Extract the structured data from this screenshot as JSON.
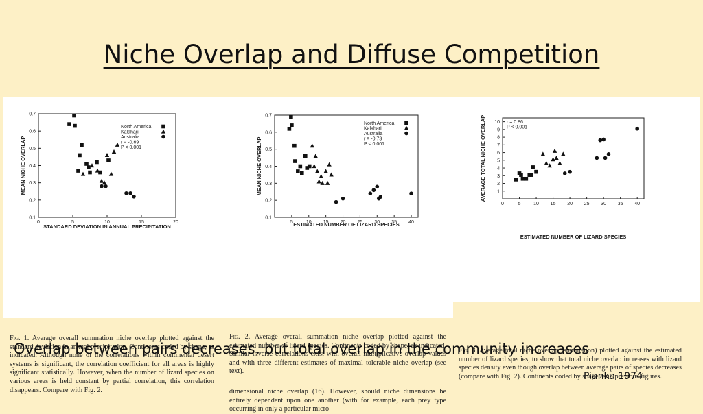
{
  "title": "Niche Overlap and Diffuse Competition",
  "subtitle": "Overlap between pairs decreases, but total overlap in the community increases",
  "credit": "Pianka 1974",
  "colors": {
    "background": "#fdf0c6",
    "panel": "#ffffff",
    "ink": "#111111"
  },
  "captions": {
    "fig1_label": "Fig. 1.",
    "fig1_text": "Average overall summation niche overlap plotted against the standard deviation in annual precipitation. Continents coded by shape, as indicated. Although none of the correlations within continental desert systems is significant, the correlation coefficient for all areas is highly significant statistically. However, when the number of lizard species on various areas is held constant by partial correlation, this correlation disappears. Compare with Fig. 2.",
    "fig2_label": "Fig. 2.",
    "fig2_text": "Average overall summation niche overlap plotted against the estimated number of lizard species. Continents coded by shape, as indicated. Similar inverse correlations exist with overall multiplicative overlap values and with three different estimates of maximal tolerable niche overlap (see text).",
    "fig2_continued": "dimensional niche overlap (16). However, should niche dimensions be entirely dependent upon one another (with for example, each prey type occurring in only a particular micro-",
    "fig3_label": "Fig. 3.",
    "fig3_text": "Average total niche overlap (summation) plotted against the estimated number of lizard species, to show that total niche overlap increases with lizard species density even though overlap between average pairs of species decreases (compare with Fig. 2). Continents coded by shape as in previous figures."
  },
  "chart_data": [
    {
      "type": "scatter",
      "xlabel": "STANDARD DEVIATION IN ANNUAL PRECIPITATION",
      "ylabel": "MEAN NICHE OVERLAP",
      "xlim": [
        0,
        20
      ],
      "ylim": [
        0.1,
        0.7
      ],
      "xticks": [
        0,
        5,
        10,
        15,
        20
      ],
      "yticks": [
        0.1,
        0.2,
        0.3,
        0.4,
        0.5,
        0.6,
        0.7
      ],
      "legend_placement": "top-right",
      "legend": [
        "North America",
        "Kalahari",
        "Australia",
        "r = -0.69",
        "P < 0.001"
      ],
      "series": [
        {
          "name": "North America",
          "marker": "square",
          "points": [
            [
              4.5,
              0.64
            ],
            [
              5.2,
              0.69
            ],
            [
              5.3,
              0.63
            ],
            [
              5.8,
              0.37
            ],
            [
              6.0,
              0.46
            ],
            [
              6.3,
              0.52
            ],
            [
              7.0,
              0.41
            ],
            [
              7.3,
              0.39
            ],
            [
              7.5,
              0.36
            ],
            [
              8.5,
              0.42
            ],
            [
              9.0,
              0.36
            ],
            [
              10.2,
              0.43
            ]
          ]
        },
        {
          "name": "Kalahari",
          "marker": "triangle",
          "points": [
            [
              6.5,
              0.35
            ],
            [
              7.8,
              0.4
            ],
            [
              8.6,
              0.37
            ],
            [
              9.2,
              0.31
            ],
            [
              9.6,
              0.3
            ],
            [
              10.0,
              0.46
            ],
            [
              10.6,
              0.35
            ],
            [
              11.0,
              0.48
            ],
            [
              11.5,
              0.52
            ]
          ]
        },
        {
          "name": "Australia",
          "marker": "circle",
          "points": [
            [
              9.2,
              0.28
            ],
            [
              9.8,
              0.28
            ],
            [
              12.8,
              0.24
            ],
            [
              13.4,
              0.24
            ],
            [
              13.9,
              0.22
            ]
          ]
        }
      ]
    },
    {
      "type": "scatter",
      "xlabel": "ESTIMATED NUMBER OF LIZARD SPECIES",
      "ylabel": "MEAN NICHE OVERLAP",
      "xlim": [
        0,
        42
      ],
      "ylim": [
        0.1,
        0.7
      ],
      "xticks": [
        5,
        10,
        15,
        20,
        25,
        30,
        35,
        40
      ],
      "yticks": [
        0.1,
        0.2,
        0.3,
        0.4,
        0.5,
        0.6,
        0.7
      ],
      "legend_placement": "top-right",
      "legend": [
        "North America",
        "Kalahari",
        "Australia",
        "r = -0.73",
        "P < 0.001"
      ],
      "series": [
        {
          "name": "North America",
          "marker": "square",
          "points": [
            [
              4.3,
              0.62
            ],
            [
              4.8,
              0.69
            ],
            [
              5.0,
              0.64
            ],
            [
              5.8,
              0.52
            ],
            [
              6.0,
              0.43
            ],
            [
              6.8,
              0.37
            ],
            [
              7.5,
              0.4
            ],
            [
              8.0,
              0.36
            ],
            [
              9.0,
              0.46
            ],
            [
              9.5,
              0.39
            ],
            [
              10.2,
              0.4
            ]
          ]
        },
        {
          "name": "Kalahari",
          "marker": "triangle",
          "points": [
            [
              11.0,
              0.52
            ],
            [
              11.6,
              0.4
            ],
            [
              12.0,
              0.46
            ],
            [
              12.5,
              0.37
            ],
            [
              13.0,
              0.31
            ],
            [
              13.6,
              0.34
            ],
            [
              14.0,
              0.3
            ],
            [
              15.0,
              0.37
            ],
            [
              15.5,
              0.3
            ],
            [
              16.0,
              0.41
            ],
            [
              16.6,
              0.35
            ]
          ]
        },
        {
          "name": "Australia",
          "marker": "circle",
          "points": [
            [
              18.0,
              0.19
            ],
            [
              20.0,
              0.21
            ],
            [
              28.0,
              0.24
            ],
            [
              29.0,
              0.26
            ],
            [
              30.0,
              0.28
            ],
            [
              30.5,
              0.21
            ],
            [
              31.0,
              0.22
            ],
            [
              40.0,
              0.24
            ]
          ]
        }
      ]
    },
    {
      "type": "scatter",
      "xlabel": "ESTIMATED NUMBER OF LIZARD SPECIES",
      "ylabel": "AVERAGE TOTAL NICHE OVERLAP",
      "xlim": [
        0,
        42
      ],
      "ylim": [
        0,
        10.5
      ],
      "xticks": [
        0,
        5,
        10,
        15,
        20,
        25,
        30,
        35,
        40
      ],
      "yticks": [
        1,
        2,
        3,
        4,
        5,
        6,
        7,
        8,
        9,
        10
      ],
      "legend_placement": "top-left",
      "legend": [
        "r = 0.86",
        "P < 0.001"
      ],
      "series": [
        {
          "name": "North America",
          "marker": "square",
          "points": [
            [
              4.0,
              2.5
            ],
            [
              5.0,
              3.3
            ],
            [
              5.5,
              3.1
            ],
            [
              6.0,
              2.6
            ],
            [
              7.0,
              2.6
            ],
            [
              8.0,
              3.1
            ],
            [
              8.6,
              3.1
            ],
            [
              9.0,
              4.1
            ],
            [
              10.0,
              3.5
            ]
          ]
        },
        {
          "name": "Kalahari",
          "marker": "triangle",
          "points": [
            [
              12.0,
              5.8
            ],
            [
              13.0,
              4.6
            ],
            [
              14.0,
              4.3
            ],
            [
              15.0,
              5.1
            ],
            [
              15.5,
              6.2
            ],
            [
              16.0,
              5.3
            ],
            [
              17.0,
              4.6
            ],
            [
              18.0,
              5.8
            ]
          ]
        },
        {
          "name": "Australia",
          "marker": "circle",
          "points": [
            [
              18.5,
              3.3
            ],
            [
              20.0,
              3.5
            ],
            [
              28.0,
              5.3
            ],
            [
              29.0,
              7.6
            ],
            [
              30.0,
              7.7
            ],
            [
              30.5,
              5.3
            ],
            [
              31.5,
              5.8
            ],
            [
              40.0,
              9.1
            ]
          ]
        }
      ]
    }
  ]
}
